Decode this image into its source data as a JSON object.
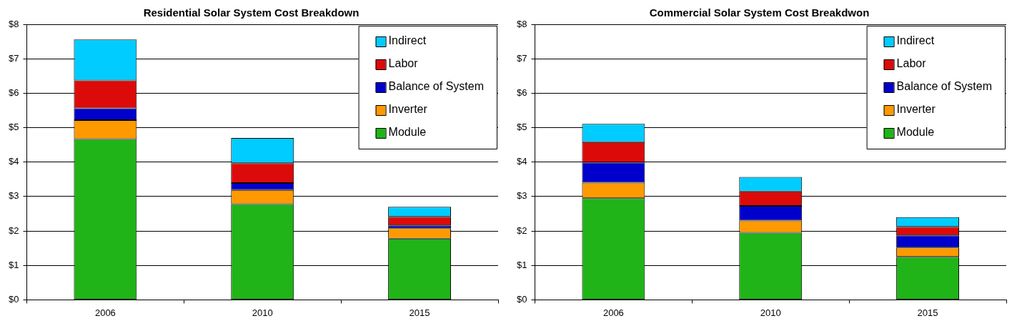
{
  "chart_data": [
    {
      "type": "bar",
      "title": "Residential Solar System Cost Breakdown",
      "categories": [
        "2006",
        "2010",
        "2015"
      ],
      "stacked": true,
      "ylim": [
        0,
        8
      ],
      "yticks": [
        {
          "value": 0,
          "label": "$0"
        },
        {
          "value": 1,
          "label": "$1"
        },
        {
          "value": 2,
          "label": "$2"
        },
        {
          "value": 3,
          "label": "$3"
        },
        {
          "value": 4,
          "label": "$4"
        },
        {
          "value": 5,
          "label": "$5"
        },
        {
          "value": 6,
          "label": "$6"
        },
        {
          "value": 7,
          "label": "$7"
        },
        {
          "value": 8,
          "label": "$8"
        }
      ],
      "grid": "y",
      "legend": "top right",
      "series": [
        {
          "name": "Module",
          "color": "#20b418",
          "values": [
            4.67,
            2.78,
            1.78
          ]
        },
        {
          "name": "Inverter",
          "color": "#ff9900",
          "values": [
            0.55,
            0.41,
            0.3
          ]
        },
        {
          "name": "Balance of System",
          "color": "#0000cc",
          "values": [
            0.34,
            0.2,
            0.08
          ]
        },
        {
          "name": "Labor",
          "color": "#dd0a0a",
          "values": [
            0.81,
            0.58,
            0.25
          ]
        },
        {
          "name": "Indirect",
          "color": "#00ccff",
          "values": [
            1.19,
            0.73,
            0.29
          ]
        }
      ]
    },
    {
      "type": "bar",
      "title": "Commercial Solar System Cost Breakdwon",
      "categories": [
        "2006",
        "2010",
        "2015"
      ],
      "stacked": true,
      "ylim": [
        0,
        8
      ],
      "yticks": [
        {
          "value": 0,
          "label": "$0"
        },
        {
          "value": 1,
          "label": "$1"
        },
        {
          "value": 2,
          "label": "$2"
        },
        {
          "value": 3,
          "label": "$3"
        },
        {
          "value": 4,
          "label": "$4"
        },
        {
          "value": 5,
          "label": "$5"
        },
        {
          "value": 6,
          "label": "$6"
        },
        {
          "value": 7,
          "label": "$7"
        },
        {
          "value": 8,
          "label": "$8"
        }
      ],
      "grid": "y",
      "legend": "top right",
      "series": [
        {
          "name": "Module",
          "color": "#20b418",
          "values": [
            2.95,
            1.95,
            1.25
          ]
        },
        {
          "name": "Inverter",
          "color": "#ff9900",
          "values": [
            0.45,
            0.35,
            0.27
          ]
        },
        {
          "name": "Balance of System",
          "color": "#0000cc",
          "values": [
            0.59,
            0.43,
            0.35
          ]
        },
        {
          "name": "Labor",
          "color": "#dd0a0a",
          "values": [
            0.59,
            0.42,
            0.25
          ]
        },
        {
          "name": "Indirect",
          "color": "#00ccff",
          "values": [
            0.53,
            0.42,
            0.28
          ]
        }
      ]
    }
  ]
}
